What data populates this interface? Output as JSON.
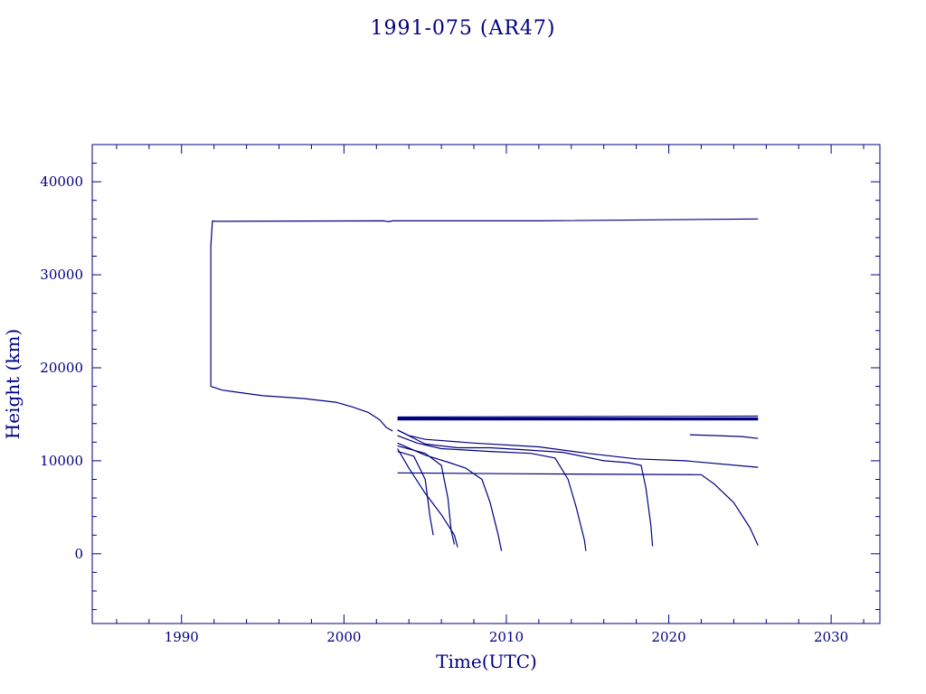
{
  "chart_data": {
    "type": "line",
    "title": "1991-075 (AR47)",
    "xlabel": "Time(UTC)",
    "ylabel": "Height (km)",
    "xlim": [
      1984.5,
      2033
    ],
    "ylim": [
      -7500,
      44000
    ],
    "x_ticks": [
      "1990",
      "2000",
      "2010",
      "2020",
      "2030"
    ],
    "y_ticks": [
      "0",
      "10000",
      "20000",
      "30000",
      "40000"
    ],
    "grid": false,
    "color": "#000080",
    "series": [
      {
        "x": [
          1991.8,
          1991.8,
          1991.9,
          1992.0,
          2002.5,
          2002.7,
          2003.0,
          2012.0,
          2025.5
        ],
        "y": [
          18000,
          33000,
          35800,
          35750,
          35800,
          35700,
          35800,
          35800,
          36000
        ]
      },
      {
        "x": [
          1991.8,
          1992.5,
          1995,
          1997.5,
          1999.5,
          2000.5,
          2001.5,
          2002.2,
          2002.6,
          2003.0
        ],
        "y": [
          18000,
          17600,
          17000,
          16700,
          16300,
          15800,
          15200,
          14400,
          13600,
          13200
        ]
      },
      {
        "x": [
          2003.3,
          2025.5
        ],
        "y": [
          14600,
          14600
        ]
      },
      {
        "x": [
          2003.3,
          2025.5
        ],
        "y": [
          14700,
          14800
        ]
      },
      {
        "x": [
          2003.3,
          2025.5
        ],
        "y": [
          14500,
          14500
        ]
      },
      {
        "x": [
          2003.3,
          2025.5
        ],
        "y": [
          14400,
          14400
        ]
      },
      {
        "x": [
          2021.3,
          2023,
          2024.5,
          2025.5
        ],
        "y": [
          12800,
          12700,
          12600,
          12400
        ]
      },
      {
        "x": [
          2003.3,
          2004,
          2005,
          2008,
          2012,
          2015,
          2018,
          2021,
          2025.5
        ],
        "y": [
          13300,
          12700,
          12300,
          11900,
          11500,
          10800,
          10200,
          10000,
          9300
        ]
      },
      {
        "x": [
          2003.3,
          2004.5,
          2006,
          2009,
          2011.5,
          2013,
          2013.8,
          2014.3,
          2014.8,
          2014.9
        ],
        "y": [
          12700,
          11900,
          11300,
          11000,
          10800,
          10300,
          8000,
          5000,
          1500,
          300
        ]
      },
      {
        "x": [
          2003.3,
          2005,
          2007,
          2009,
          2011,
          2013.5,
          2016,
          2017.5,
          2018.3,
          2018.6,
          2018.9,
          2019.0
        ],
        "y": [
          13300,
          11800,
          11400,
          11400,
          11200,
          10900,
          10000,
          9800,
          9500,
          7000,
          3000,
          800
        ]
      },
      {
        "x": [
          2003.3,
          2005,
          2006.5,
          2007.5,
          2008.5,
          2009.0,
          2009.5,
          2009.7
        ],
        "y": [
          11900,
          10600,
          9800,
          9200,
          8000,
          5500,
          2000,
          300
        ]
      },
      {
        "x": [
          2003.3,
          2005,
          2006.0,
          2006.4,
          2006.6,
          2006.8
        ],
        "y": [
          11600,
          10800,
          9500,
          6000,
          2500,
          1000
        ]
      },
      {
        "x": [
          2003.3,
          2004.3,
          2005.0,
          2005.3,
          2005.5
        ],
        "y": [
          11000,
          10500,
          8000,
          4000,
          2000
        ]
      },
      {
        "x": [
          2003.3,
          2004,
          2005,
          2006,
          2006.8,
          2007.0
        ],
        "y": [
          11300,
          9200,
          6500,
          4200,
          2000,
          700
        ]
      },
      {
        "x": [
          2003.3,
          2011,
          2022,
          2022.8,
          2024,
          2025,
          2025.5
        ],
        "y": [
          8700,
          8600,
          8500,
          7500,
          5500,
          2800,
          900
        ]
      }
    ]
  }
}
